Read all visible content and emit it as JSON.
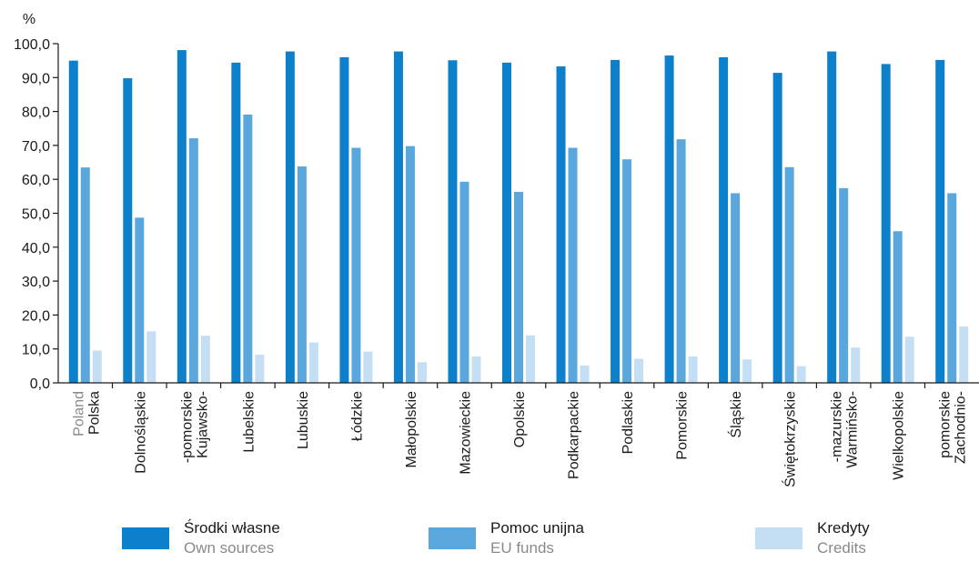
{
  "chart_data": {
    "type": "bar",
    "unit_label": "%",
    "ylim": [
      0,
      100
    ],
    "y_ticks": [
      "0,0",
      "10,0",
      "20,0",
      "30,0",
      "40,0",
      "50,0",
      "60,0",
      "70,0",
      "80,0",
      "90,0",
      "100,0"
    ],
    "grid": false,
    "legend_position": "bottom",
    "categories": [
      {
        "lines": [
          "Polska"
        ],
        "sub": "Poland"
      },
      {
        "lines": [
          "Dolnośląskie"
        ]
      },
      {
        "lines": [
          "Kujawsko-",
          "-pomorskie"
        ]
      },
      {
        "lines": [
          "Lubelskie"
        ]
      },
      {
        "lines": [
          "Lubuskie"
        ]
      },
      {
        "lines": [
          "Łódzkie"
        ]
      },
      {
        "lines": [
          "Małopolskie"
        ]
      },
      {
        "lines": [
          "Mazowieckie"
        ]
      },
      {
        "lines": [
          "Opolskie"
        ]
      },
      {
        "lines": [
          "Podkarpackie"
        ]
      },
      {
        "lines": [
          "Podlaskie"
        ]
      },
      {
        "lines": [
          "Pomorskie"
        ]
      },
      {
        "lines": [
          "Śląskie"
        ]
      },
      {
        "lines": [
          "Świętokrzyskie"
        ]
      },
      {
        "lines": [
          "Warmińsko-",
          "-mazurskie"
        ]
      },
      {
        "lines": [
          "Wielkopolskie"
        ]
      },
      {
        "lines": [
          "Zachodnio-",
          "pomorskie"
        ]
      }
    ],
    "series": [
      {
        "name": "Środki własne",
        "name_en": "Own sources",
        "color": "#0d80cc",
        "values": [
          95.0,
          89.8,
          98.1,
          94.4,
          97.7,
          96.0,
          97.7,
          95.1,
          94.4,
          93.3,
          95.2,
          96.5,
          96.0,
          91.4,
          97.7,
          94.0,
          95.2
        ]
      },
      {
        "name": "Pomoc unijna",
        "name_en": "EU funds",
        "color": "#59a7dc",
        "values": [
          63.5,
          48.7,
          72.1,
          79.1,
          63.8,
          69.3,
          69.8,
          59.3,
          56.3,
          69.3,
          65.9,
          71.8,
          55.9,
          63.6,
          57.4,
          44.7,
          55.9
        ]
      },
      {
        "name": "Kredyty",
        "name_en": "Credits",
        "color": "#c4def4",
        "values": [
          9.5,
          15.2,
          13.9,
          8.3,
          11.9,
          9.2,
          6.1,
          7.8,
          14.0,
          5.1,
          7.1,
          7.8,
          6.9,
          4.9,
          10.4,
          13.6,
          16.6
        ]
      }
    ]
  }
}
